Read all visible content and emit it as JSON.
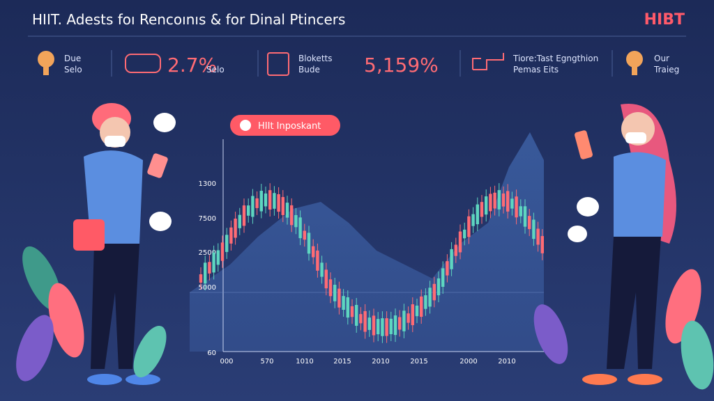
{
  "header": {
    "title": "HIIT. Adests foı Rencoınıs & for Dinal Ptincers",
    "brand": "HIBT"
  },
  "stats": [
    {
      "lines": [
        "Due",
        "Selo"
      ]
    },
    {
      "big": "2.7%",
      "lines": [
        "Selo"
      ]
    },
    {
      "lines": [
        "Bloketts",
        "Bude"
      ]
    },
    {
      "big": "5,159%",
      "lines": []
    },
    {
      "lines": [
        "Tiore:Tast Egngthion",
        "Pemas Eits"
      ]
    },
    {
      "lines": [
        "Our",
        "Traieg"
      ]
    }
  ],
  "badge": "HIIt Inposkant",
  "chart": {
    "y_labels": [
      "1300",
      "7500",
      "2500",
      "5000",
      "60"
    ],
    "x_labels": [
      "000",
      "570",
      "1010",
      "2015",
      "2010",
      "2015",
      "2000",
      "2010"
    ]
  }
}
